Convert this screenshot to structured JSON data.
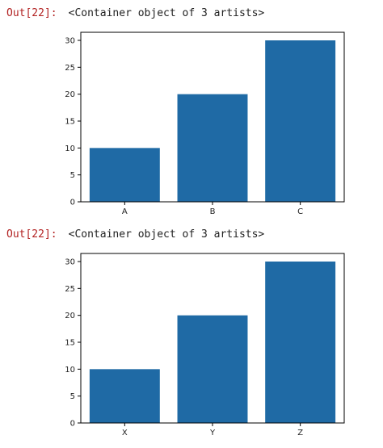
{
  "outputs": [
    {
      "prompt": "Out[22]:",
      "text": "<Container object of 3 artists>",
      "chart_data": {
        "type": "bar",
        "categories": [
          "A",
          "B",
          "C"
        ],
        "values": [
          10,
          20,
          30
        ],
        "ylim": [
          0,
          31.5
        ],
        "yticks": [
          0,
          5,
          10,
          15,
          20,
          25,
          30
        ],
        "bar_color": "#1f6aa5",
        "grid": false
      }
    },
    {
      "prompt": "Out[22]:",
      "text": "<Container object of 3 artists>",
      "chart_data": {
        "type": "bar",
        "categories": [
          "X",
          "Y",
          "Z"
        ],
        "values": [
          10,
          20,
          30
        ],
        "ylim": [
          0,
          31.5
        ],
        "yticks": [
          0,
          5,
          10,
          15,
          20,
          25,
          30
        ],
        "bar_color": "#1f6aa5",
        "grid": false
      }
    }
  ]
}
